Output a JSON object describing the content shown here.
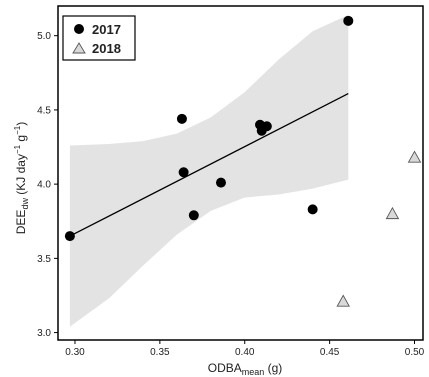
{
  "chart_data": {
    "type": "scatter",
    "xlabel": {
      "main": "ODBA",
      "sub": "mean",
      "unit": " (g)"
    },
    "ylabel": {
      "main": "DEE",
      "sub": "dw",
      "unit_open": " (KJ day",
      "exp1": "−1",
      "g": " g",
      "exp2": "−1",
      "close": ")"
    },
    "xlim": [
      0.29,
      0.505
    ],
    "ylim": [
      2.95,
      5.2
    ],
    "xticks": [
      0.3,
      0.35,
      0.4,
      0.45,
      0.5
    ],
    "xtick_labels": [
      "0.30",
      "0.35",
      "0.40",
      "0.45",
      "0.50"
    ],
    "yticks": [
      3.0,
      3.5,
      4.0,
      4.5,
      5.0
    ],
    "ytick_labels": [
      "3.0",
      "3.5",
      "4.0",
      "4.5",
      "5.0"
    ],
    "grid": false,
    "legend_position": "top-left",
    "series": [
      {
        "name": "2017",
        "marker": "circle",
        "color": "#000000",
        "points": [
          {
            "x": 0.297,
            "y": 3.65
          },
          {
            "x": 0.363,
            "y": 4.44
          },
          {
            "x": 0.364,
            "y": 4.08
          },
          {
            "x": 0.37,
            "y": 3.79
          },
          {
            "x": 0.386,
            "y": 4.01
          },
          {
            "x": 0.409,
            "y": 4.4
          },
          {
            "x": 0.41,
            "y": 4.36
          },
          {
            "x": 0.413,
            "y": 4.39
          },
          {
            "x": 0.44,
            "y": 3.83
          },
          {
            "x": 0.461,
            "y": 5.1
          }
        ]
      },
      {
        "name": "2018",
        "marker": "triangle",
        "color": "#d9d9d9",
        "points": [
          {
            "x": 0.458,
            "y": 3.21
          },
          {
            "x": 0.487,
            "y": 3.8
          },
          {
            "x": 0.5,
            "y": 4.18
          }
        ]
      }
    ],
    "fit_line": {
      "x": [
        0.297,
        0.461
      ],
      "y": [
        3.65,
        4.61
      ],
      "color": "#000000"
    },
    "confidence_band": {
      "color": "#e3e3e3",
      "x": [
        0.297,
        0.32,
        0.34,
        0.36,
        0.38,
        0.4,
        0.42,
        0.44,
        0.461
      ],
      "upper": [
        4.26,
        4.27,
        4.29,
        4.34,
        4.45,
        4.62,
        4.84,
        5.03,
        5.14
      ],
      "lower": [
        3.04,
        3.23,
        3.45,
        3.66,
        3.82,
        3.91,
        3.93,
        3.97,
        4.03
      ]
    }
  }
}
